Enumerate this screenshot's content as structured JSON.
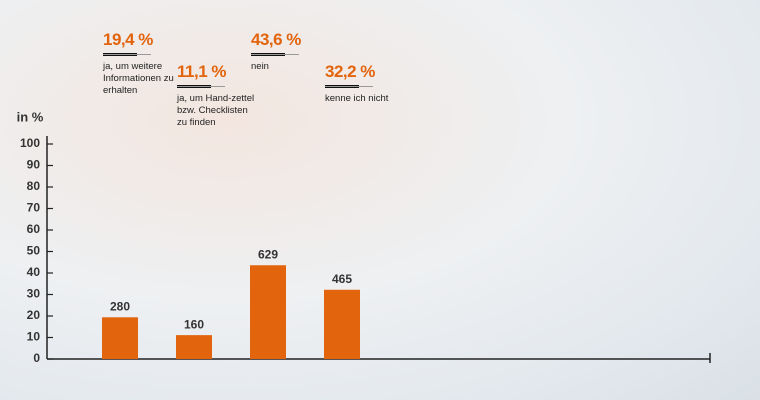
{
  "chart_data": {
    "type": "bar",
    "y_axis_label": "in %",
    "categories": [
      "ja, um weitere Informationen zu erhalten",
      "ja, um Hand-zettel bzw. Checklisten zu finden",
      "nein",
      "kenne ich nicht"
    ],
    "values": [
      19.4,
      11.1,
      43.6,
      32.2
    ],
    "value_labels": [
      "19,4 %",
      "11,1 %",
      "43,6 %",
      "32,2 %"
    ],
    "counts": [
      280,
      160,
      629,
      465
    ],
    "color": "#e2640d",
    "ylim": [
      0,
      100
    ],
    "yticks": [
      0,
      10,
      20,
      30,
      40,
      50,
      60,
      70,
      80,
      90,
      100
    ],
    "grid": false
  }
}
